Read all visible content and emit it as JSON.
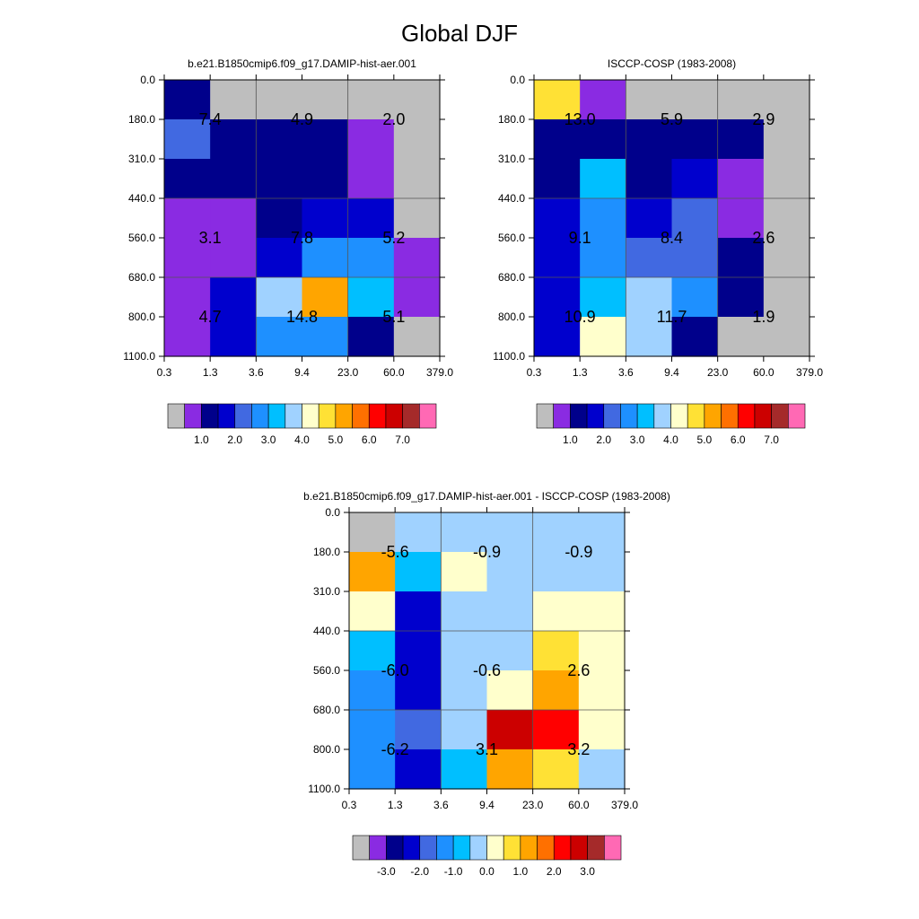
{
  "figure": {
    "title": "Global DJF"
  },
  "colors": {
    "missing": "#BEBEBE",
    "palette": [
      "#BEBEBE",
      "#8A2BE2",
      "#00008B",
      "#0000CD",
      "#4169E1",
      "#1E90FF",
      "#00BFFF",
      "#A0D2FF",
      "#FFFFCC",
      "#FFE135",
      "#FFA500",
      "#FF7000",
      "#FF0000",
      "#CC0000",
      "#A52A2A",
      "#FF69B4"
    ]
  },
  "chart_data": [
    {
      "type": "heatmap",
      "title": "b.e21.B1850cmip6.f09_g17.DAMIP-hist-aer.001",
      "x_ticks": [
        "0.3",
        "1.3",
        "3.6",
        "9.4",
        "23.0",
        "60.0",
        "379.0"
      ],
      "y_ticks": [
        "0.0",
        "180.0",
        "310.0",
        "440.0",
        "560.0",
        "680.0",
        "800.0",
        "1100.0"
      ],
      "colorbar": {
        "labels": [
          "1.0",
          "2.0",
          "3.0",
          "4.0",
          "5.0",
          "6.0",
          "7.0"
        ]
      },
      "cells": [
        [
          2,
          0,
          0,
          0,
          0,
          0
        ],
        [
          4,
          2,
          2,
          2,
          1,
          0
        ],
        [
          2,
          2,
          2,
          2,
          1,
          0
        ],
        [
          1,
          1,
          2,
          3,
          3,
          0
        ],
        [
          1,
          1,
          3,
          5,
          5,
          1
        ],
        [
          1,
          3,
          7,
          10,
          6,
          1
        ],
        [
          1,
          3,
          5,
          5,
          2,
          0
        ]
      ],
      "annotations": [
        {
          "col": 1,
          "row": 1,
          "text": "7.4"
        },
        {
          "col": 3,
          "row": 1,
          "text": "4.9"
        },
        {
          "col": 5,
          "row": 1,
          "text": "2.0"
        },
        {
          "col": 1,
          "row": 4,
          "text": "3.1"
        },
        {
          "col": 3,
          "row": 4,
          "text": "7.8"
        },
        {
          "col": 5,
          "row": 4,
          "text": "5.2"
        },
        {
          "col": 1,
          "row": 6,
          "text": "4.7"
        },
        {
          "col": 3,
          "row": 6,
          "text": "14.8"
        },
        {
          "col": 5,
          "row": 6,
          "text": "5.1"
        }
      ]
    },
    {
      "type": "heatmap",
      "title": "ISCCP-COSP (1983-2008)",
      "x_ticks": [
        "0.3",
        "1.3",
        "3.6",
        "9.4",
        "23.0",
        "60.0",
        "379.0"
      ],
      "y_ticks": [
        "0.0",
        "180.0",
        "310.0",
        "440.0",
        "560.0",
        "680.0",
        "800.0",
        "1100.0"
      ],
      "colorbar": {
        "labels": [
          "1.0",
          "2.0",
          "3.0",
          "4.0",
          "5.0",
          "6.0",
          "7.0"
        ]
      },
      "cells": [
        [
          9,
          1,
          0,
          0,
          0,
          0
        ],
        [
          2,
          2,
          2,
          2,
          2,
          0
        ],
        [
          2,
          6,
          2,
          3,
          1,
          0
        ],
        [
          3,
          5,
          3,
          4,
          1,
          0
        ],
        [
          3,
          5,
          4,
          4,
          2,
          0
        ],
        [
          3,
          6,
          7,
          5,
          2,
          0
        ],
        [
          3,
          8,
          7,
          2,
          0,
          0
        ]
      ],
      "annotations": [
        {
          "col": 1,
          "row": 1,
          "text": "13.0"
        },
        {
          "col": 3,
          "row": 1,
          "text": "5.9"
        },
        {
          "col": 5,
          "row": 1,
          "text": "2.9"
        },
        {
          "col": 1,
          "row": 4,
          "text": "9.1"
        },
        {
          "col": 3,
          "row": 4,
          "text": "8.4"
        },
        {
          "col": 5,
          "row": 4,
          "text": "2.6"
        },
        {
          "col": 1,
          "row": 6,
          "text": "10.9"
        },
        {
          "col": 3,
          "row": 6,
          "text": "11.7"
        },
        {
          "col": 5,
          "row": 6,
          "text": "1.9"
        }
      ]
    },
    {
      "type": "heatmap",
      "title": "b.e21.B1850cmip6.f09_g17.DAMIP-hist-aer.001 - ISCCP-COSP (1983-2008)",
      "x_ticks": [
        "0.3",
        "1.3",
        "3.6",
        "9.4",
        "23.0",
        "60.0",
        "379.0"
      ],
      "y_ticks": [
        "0.0",
        "180.0",
        "310.0",
        "440.0",
        "560.0",
        "680.0",
        "800.0",
        "1100.0"
      ],
      "colorbar": {
        "labels": [
          "-3.0",
          "-2.0",
          "-1.0",
          "0.0",
          "1.0",
          "2.0",
          "3.0"
        ]
      },
      "cells": [
        [
          0,
          7,
          7,
          7,
          7,
          7
        ],
        [
          10,
          6,
          8,
          7,
          7,
          7
        ],
        [
          8,
          3,
          7,
          7,
          8,
          8
        ],
        [
          6,
          3,
          7,
          7,
          9,
          8
        ],
        [
          5,
          3,
          7,
          8,
          10,
          8
        ],
        [
          5,
          4,
          7,
          13,
          12,
          8
        ],
        [
          5,
          3,
          6,
          10,
          9,
          7
        ]
      ],
      "annotations": [
        {
          "col": 1,
          "row": 1,
          "text": "-5.6"
        },
        {
          "col": 3,
          "row": 1,
          "text": "-0.9"
        },
        {
          "col": 5,
          "row": 1,
          "text": "-0.9"
        },
        {
          "col": 1,
          "row": 4,
          "text": "-6.0"
        },
        {
          "col": 3,
          "row": 4,
          "text": "-0.6"
        },
        {
          "col": 5,
          "row": 4,
          "text": "2.6"
        },
        {
          "col": 1,
          "row": 6,
          "text": "-6.2"
        },
        {
          "col": 3,
          "row": 6,
          "text": "3.1"
        },
        {
          "col": 5,
          "row": 6,
          "text": "3.2"
        }
      ]
    }
  ]
}
